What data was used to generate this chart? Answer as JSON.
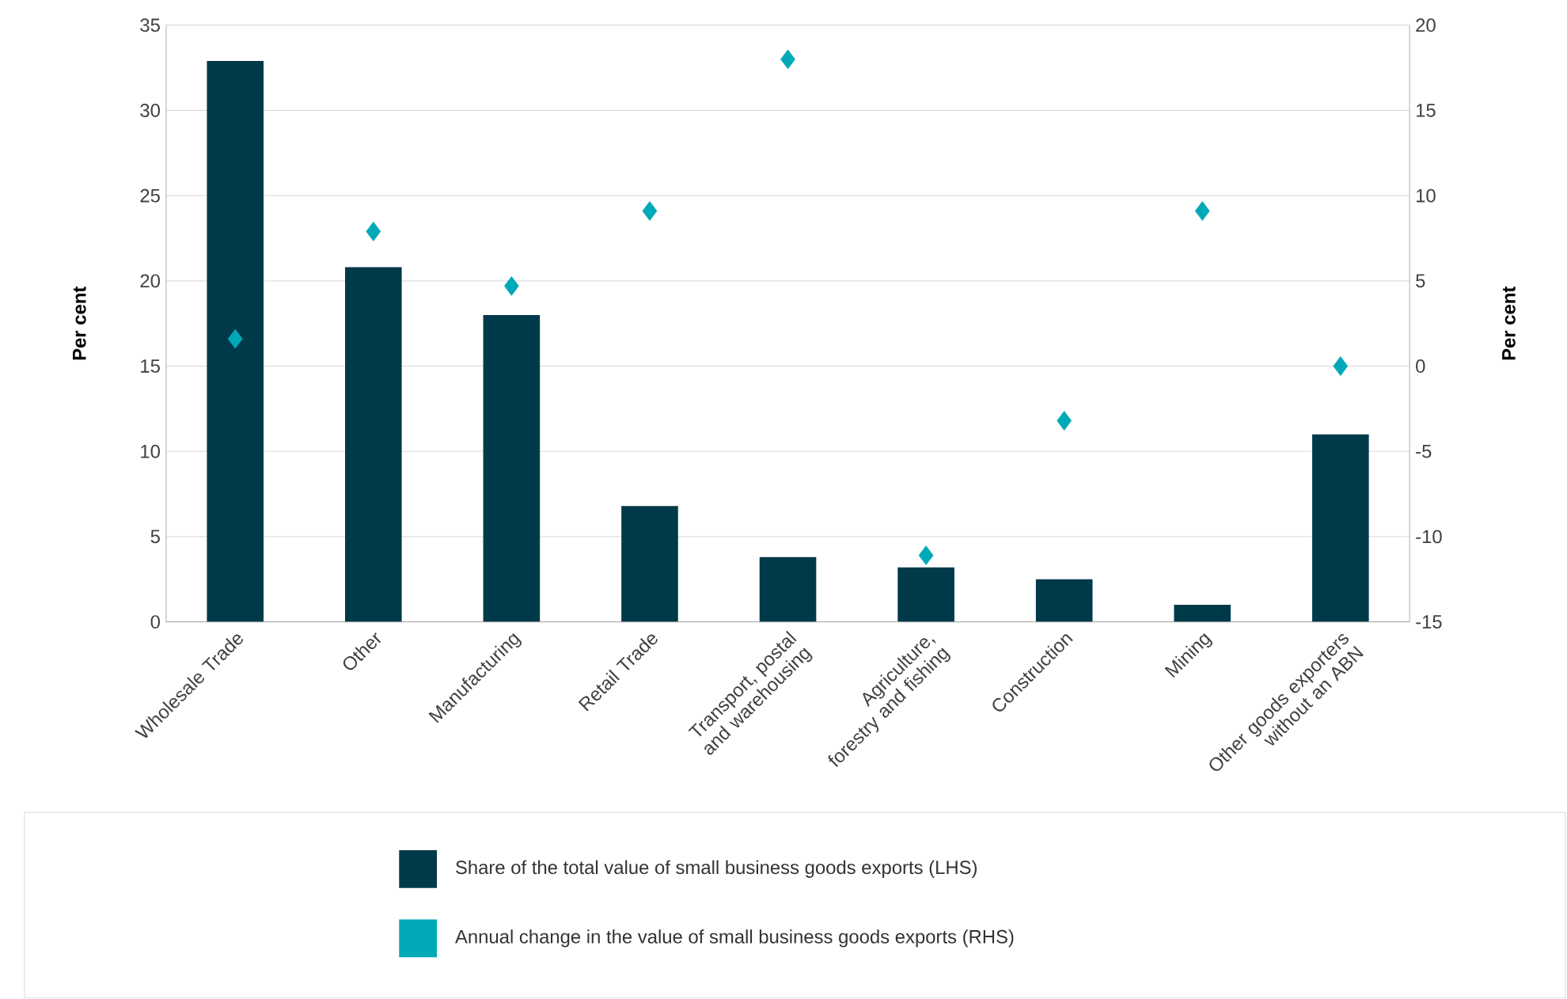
{
  "chart_data": {
    "type": "bar",
    "categories": [
      "Wholesale Trade",
      "Other",
      "Manufacturing",
      "Retail Trade",
      "Transport, postal and warehousing",
      "Agriculture, forestry and fishing",
      "Construction",
      "Mining",
      "Other goods exporters without an ABN"
    ],
    "series": [
      {
        "name": "Share of the total value of small business goods exports (LHS)",
        "color": "#003a4a",
        "values": [
          32.9,
          20.8,
          18.0,
          6.8,
          3.8,
          3.2,
          2.5,
          1.0,
          11.0
        ]
      },
      {
        "name": "Annual change in the value of small business goods exports (RHS)",
        "type": "scatter",
        "axis": "y2",
        "marker": "diamond",
        "color": "#00a9b7",
        "values": [
          1.6,
          7.9,
          4.7,
          9.1,
          18.0,
          -11.1,
          -3.2,
          9.1,
          0.0
        ]
      }
    ],
    "ylabel": "Per cent",
    "y2label": "Per cent",
    "ylim": [
      0,
      35
    ],
    "yticks": [
      0,
      5,
      10,
      15,
      20,
      25,
      30,
      35
    ],
    "y2lim": [
      -15,
      20
    ],
    "y2ticks": [
      -15,
      -10,
      -5,
      0,
      5,
      10,
      15,
      20
    ],
    "grid": "y",
    "legend": "bottom"
  }
}
